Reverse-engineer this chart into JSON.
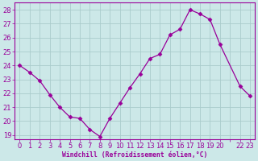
{
  "hours": [
    0,
    1,
    2,
    3,
    4,
    5,
    6,
    7,
    8,
    9,
    10,
    11,
    12,
    13,
    14,
    15,
    16,
    17,
    18,
    19,
    20,
    22,
    23
  ],
  "values": [
    24.0,
    23.5,
    22.9,
    21.9,
    21.0,
    20.3,
    20.2,
    19.4,
    18.9,
    20.2,
    21.3,
    22.4,
    23.4,
    24.5,
    24.8,
    26.2,
    26.6,
    28.0,
    27.7,
    27.3,
    25.5,
    22.5,
    21.8
  ],
  "line_color": "#990099",
  "marker": "D",
  "marker_size": 2.5,
  "bg_color": "#cce8e8",
  "grid_color": "#aacccc",
  "tick_color": "#990099",
  "label_color": "#990099",
  "xlabel": "Windchill (Refroidissement éolien,°C)",
  "ylim_min": 18.7,
  "ylim_max": 28.5,
  "yticks": [
    19,
    20,
    21,
    22,
    23,
    24,
    25,
    26,
    27,
    28
  ],
  "xtick_labels": [
    "0",
    "1",
    "2",
    "3",
    "4",
    "5",
    "6",
    "7",
    "8",
    "9",
    "10",
    "11",
    "12",
    "13",
    "14",
    "15",
    "16",
    "17",
    "18",
    "19",
    "20",
    "",
    "22",
    "23"
  ],
  "xlabel_fontsize": 5.8,
  "tick_fontsize": 6.0
}
